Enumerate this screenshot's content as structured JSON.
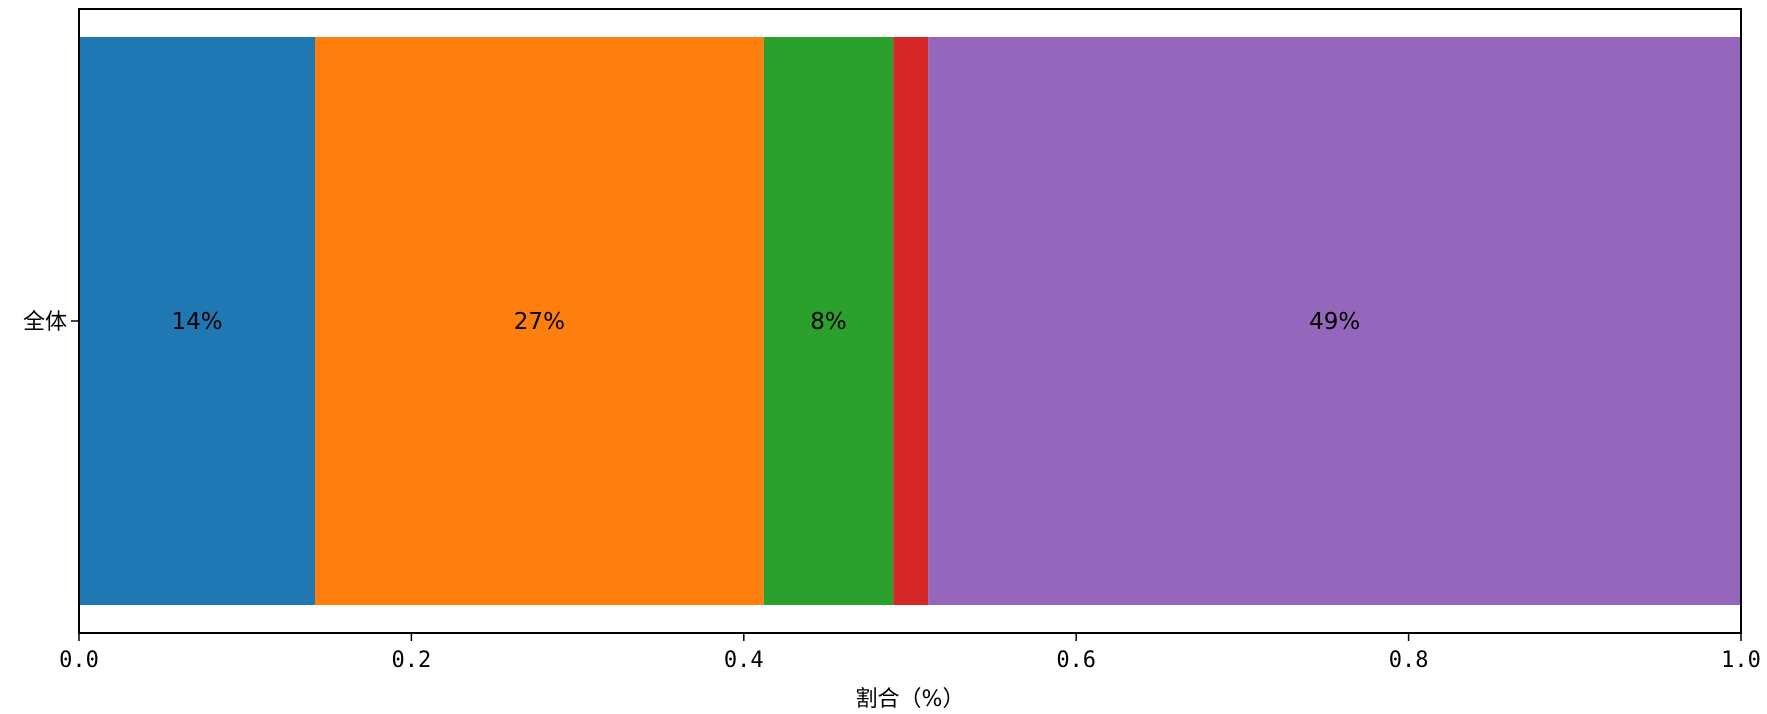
{
  "chart_data": {
    "type": "bar",
    "orientation": "horizontal",
    "stacked": true,
    "categories": [
      "全体"
    ],
    "series": [
      {
        "values": [
          0.142
        ],
        "color": "#1f77b4",
        "data_label": "14%"
      },
      {
        "values": [
          0.27
        ],
        "color": "#ff7f0e",
        "data_label": "27%"
      },
      {
        "values": [
          0.078
        ],
        "color": "#2ca02c",
        "data_label": "8%"
      },
      {
        "values": [
          0.021
        ],
        "color": "#d62728",
        "data_label": ""
      },
      {
        "values": [
          0.489
        ],
        "color": "#9467bd",
        "data_label": "49%"
      }
    ],
    "xlabel": "割合（%）",
    "ylabel": "",
    "xlim": [
      0.0,
      1.0
    ],
    "xticks": [
      "0.0",
      "0.2",
      "0.4",
      "0.6",
      "0.8",
      "1.0"
    ],
    "grid": false,
    "legend": "none"
  }
}
